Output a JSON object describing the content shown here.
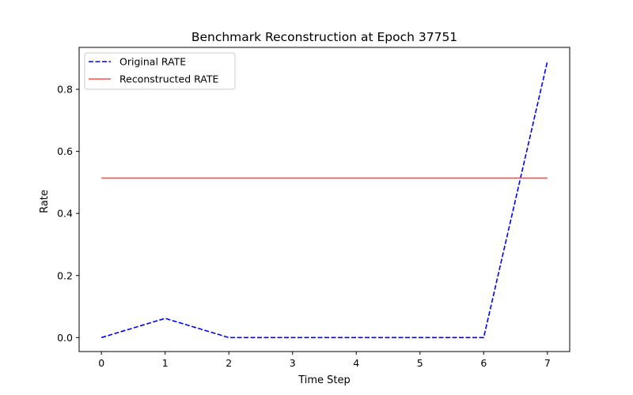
{
  "chart_data": {
    "type": "line",
    "title": "Benchmark Reconstruction at Epoch 37751",
    "xlabel": "Time Step",
    "ylabel": "Rate",
    "x": [
      0,
      1,
      2,
      3,
      4,
      5,
      6,
      7
    ],
    "xticks": [
      0,
      1,
      2,
      3,
      4,
      5,
      6,
      7
    ],
    "yticks": [
      0.0,
      0.2,
      0.4,
      0.6,
      0.8
    ],
    "ytick_labels": [
      "0.0",
      "0.2",
      "0.4",
      "0.6",
      "0.8"
    ],
    "xlim": [
      -0.35,
      7.35
    ],
    "ylim": [
      -0.045,
      0.935
    ],
    "grid": false,
    "legend_position": "top-left",
    "series": [
      {
        "name": "Original RATE",
        "color": "#0000ff",
        "style": "dashed",
        "values": [
          0.0,
          0.062,
          0.0,
          0.0,
          0.0,
          0.0,
          0.0,
          0.89
        ]
      },
      {
        "name": "Reconstructed RATE",
        "color": "#ff4d4d",
        "style": "solid",
        "values": [
          0.514,
          0.514,
          0.514,
          0.514,
          0.514,
          0.514,
          0.514,
          0.514
        ]
      }
    ]
  }
}
